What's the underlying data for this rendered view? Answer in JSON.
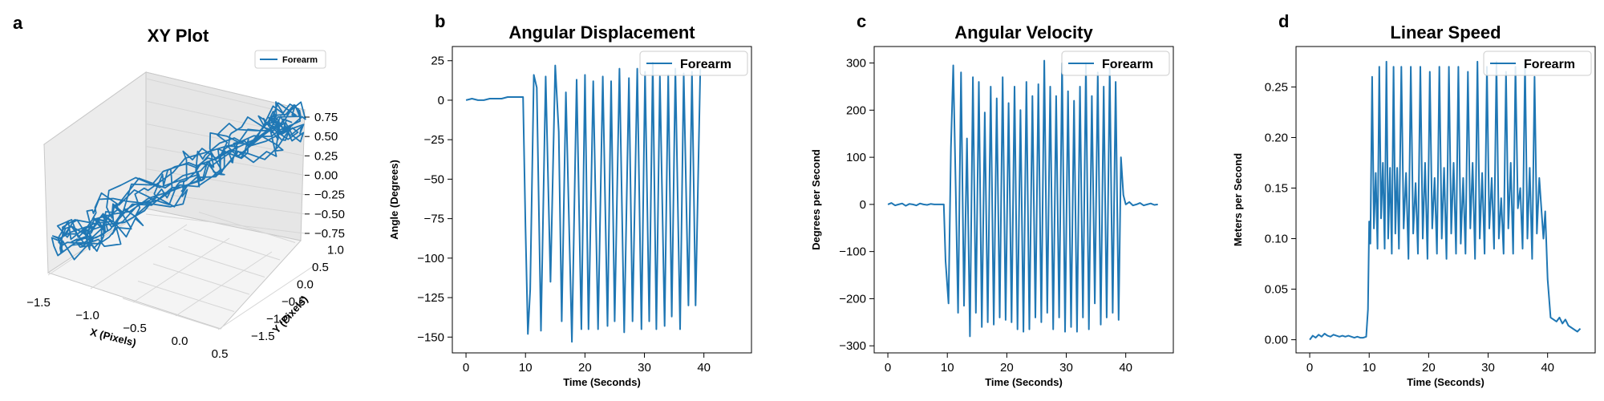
{
  "chart_data": [
    {
      "panel": "a",
      "type": "line",
      "projection": "3d",
      "title": "XY Plot",
      "xlabel": "X (Pixels)",
      "ylabel": "Y (Pixels)",
      "zlabel": "",
      "legend": "Forearm",
      "legend_position": "top-right",
      "x_ticks": [
        "−1.5",
        "−1.0",
        "−0.5",
        "0.0",
        "0.5"
      ],
      "y_ticks": [
        "−1.5",
        "−1.0",
        "−0.5",
        "0.0",
        "0.5",
        "1.0"
      ],
      "z_ticks": [
        "0.75",
        "0.50",
        "0.25",
        "0.00",
        "−0.25",
        "−0.50",
        "−0.75"
      ],
      "xlim": [
        -1.6,
        0.9
      ],
      "ylim": [
        -1.6,
        1.2
      ],
      "zlim": [
        -0.85,
        0.8
      ],
      "color": "#1f77b4",
      "grid": true
    },
    {
      "panel": "b",
      "type": "line",
      "title": "Angular Displacement",
      "xlabel": "Time (Seconds)",
      "ylabel": "Angle (Degrees)",
      "legend": "Forearm",
      "legend_position": "top-right",
      "xlim": [
        -2.3,
        48
      ],
      "ylim": [
        -160,
        34
      ],
      "x_ticks": [
        "0",
        "10",
        "20",
        "30",
        "40"
      ],
      "y_ticks": [
        "25",
        "0",
        "−25",
        "−50",
        "−75",
        "−100",
        "−125",
        "−150"
      ],
      "series": [
        {
          "color": "#1f77b4",
          "x": [
            0,
            1,
            2,
            3,
            4,
            5,
            6,
            7,
            8,
            9,
            9.6,
            10.0,
            10.4,
            10.8,
            11.4,
            11.9,
            12.6,
            13.4,
            14.2,
            15.0,
            15.6,
            16.1,
            16.8,
            17.8,
            18.6,
            19.4,
            20.0,
            20.6,
            21.4,
            22.2,
            23.0,
            23.8,
            24.4,
            25.0,
            25.8,
            26.6,
            27.4,
            28.0,
            28.8,
            29.5,
            30.1,
            30.8,
            31.4,
            32.0,
            32.6,
            33.4,
            34.0,
            34.6,
            35.2,
            36.0,
            36.6,
            37.4,
            38.0,
            38.6,
            39.4
          ],
          "y": [
            0,
            1,
            0,
            0,
            1,
            1,
            1,
            2,
            2,
            2,
            2,
            -80,
            -148,
            -120,
            16,
            8,
            -146,
            15,
            -115,
            22,
            -20,
            -140,
            5,
            -153,
            13,
            -145,
            16,
            -145,
            12,
            -145,
            15,
            -143,
            12,
            -140,
            20,
            -147,
            14,
            -140,
            20,
            -145,
            18,
            -140,
            24,
            -145,
            15,
            -143,
            16,
            -137,
            20,
            -145,
            17,
            -130,
            18,
            -130,
            20
          ]
        }
      ]
    },
    {
      "panel": "c",
      "type": "line",
      "title": "Angular Velocity",
      "xlabel": "Time (Seconds)",
      "ylabel": "Degrees per Second",
      "legend": "Forearm",
      "legend_position": "top-right",
      "xlim": [
        -2.3,
        48
      ],
      "ylim": [
        -315,
        335
      ],
      "x_ticks": [
        "0",
        "10",
        "20",
        "30",
        "40"
      ],
      "y_ticks": [
        "300",
        "200",
        "100",
        "0",
        "−100",
        "−200",
        "−300"
      ],
      "series": [
        {
          "color": "#1f77b4",
          "x": [
            0,
            0.6,
            1.2,
            1.8,
            2.4,
            3,
            3.6,
            4.2,
            4.8,
            5.4,
            6,
            6.6,
            7.2,
            7.8,
            8.4,
            9.0,
            9.4,
            9.7,
            10.2,
            10.6,
            11.0,
            11.4,
            11.8,
            12.3,
            12.8,
            13.3,
            13.8,
            14.3,
            14.8,
            15.3,
            15.8,
            16.3,
            16.8,
            17.3,
            17.8,
            18.3,
            18.8,
            19.3,
            19.8,
            20.3,
            20.8,
            21.3,
            21.8,
            22.3,
            22.8,
            23.3,
            23.8,
            24.3,
            24.8,
            25.3,
            25.8,
            26.3,
            26.8,
            27.3,
            27.8,
            28.3,
            28.8,
            29.3,
            29.8,
            30.3,
            30.8,
            31.3,
            31.8,
            32.3,
            32.8,
            33.3,
            33.8,
            34.3,
            34.8,
            35.3,
            35.8,
            36.3,
            36.8,
            37.3,
            37.8,
            38.3,
            38.8,
            39.2,
            39.6,
            40.0,
            40.6,
            41.2,
            41.8,
            42.4,
            43,
            43.6,
            44.2,
            44.8,
            45.4
          ],
          "y": [
            0,
            3,
            -2,
            0,
            2,
            -3,
            1,
            0,
            -2,
            2,
            0,
            -1,
            1,
            0,
            0,
            0,
            0,
            -120,
            -210,
            120,
            295,
            40,
            -230,
            280,
            -215,
            140,
            -280,
            270,
            -230,
            260,
            -260,
            195,
            -250,
            250,
            -255,
            225,
            -240,
            270,
            -245,
            215,
            -250,
            250,
            -265,
            200,
            -270,
            260,
            -265,
            230,
            -240,
            255,
            -250,
            305,
            -230,
            250,
            -265,
            230,
            -240,
            300,
            -270,
            240,
            -260,
            220,
            -270,
            250,
            -240,
            300,
            -265,
            230,
            -210,
            280,
            -255,
            250,
            -240,
            290,
            -230,
            260,
            -245,
            100,
            20,
            0,
            5,
            -2,
            0,
            3,
            -2,
            0,
            2,
            -1,
            0
          ]
        }
      ]
    },
    {
      "panel": "d",
      "type": "line",
      "title": "Linear Speed",
      "xlabel": "Time (Seconds)",
      "ylabel": "Meters per Second",
      "legend": "Forearm",
      "legend_position": "top-right",
      "xlim": [
        -2.3,
        48
      ],
      "ylim": [
        -0.013,
        0.29
      ],
      "x_ticks": [
        "0",
        "10",
        "20",
        "30",
        "40"
      ],
      "y_ticks": [
        "0.25",
        "0.20",
        "0.15",
        "0.10",
        "0.05",
        "0.00"
      ],
      "series": [
        {
          "color": "#1f77b4",
          "x": [
            0,
            0.5,
            1,
            1.5,
            2,
            2.5,
            3,
            3.5,
            4,
            4.5,
            5,
            5.5,
            6,
            6.5,
            7,
            7.5,
            8,
            8.5,
            9,
            9.5,
            9.8,
            10.0,
            10.2,
            10.5,
            10.8,
            11.1,
            11.4,
            11.7,
            12.0,
            12.3,
            12.6,
            12.9,
            13.2,
            13.5,
            13.8,
            14.1,
            14.4,
            14.7,
            15.0,
            15.4,
            15.8,
            16.2,
            16.6,
            17.0,
            17.4,
            17.8,
            18.2,
            18.6,
            19.0,
            19.4,
            19.8,
            20.2,
            20.6,
            21.0,
            21.4,
            21.8,
            22.2,
            22.6,
            23.0,
            23.4,
            23.8,
            24.2,
            24.6,
            25.0,
            25.4,
            25.8,
            26.2,
            26.6,
            27.0,
            27.4,
            27.8,
            28.2,
            28.6,
            29.0,
            29.4,
            29.8,
            30.2,
            30.6,
            31.0,
            31.4,
            31.8,
            32.2,
            32.6,
            33.0,
            33.4,
            33.8,
            34.2,
            34.6,
            35.0,
            35.4,
            35.8,
            36.2,
            36.6,
            37.0,
            37.4,
            37.8,
            38.2,
            38.6,
            39.0,
            39.3,
            39.6,
            40.0,
            40.5,
            41,
            41.5,
            42,
            42.5,
            43,
            43.5,
            44,
            44.5,
            45,
            45.5
          ],
          "y": [
            0.0,
            0.004,
            0.002,
            0.005,
            0.003,
            0.006,
            0.004,
            0.003,
            0.005,
            0.004,
            0.003,
            0.004,
            0.003,
            0.004,
            0.003,
            0.002,
            0.003,
            0.002,
            0.002,
            0.003,
            0.03,
            0.117,
            0.095,
            0.26,
            0.11,
            0.165,
            0.09,
            0.27,
            0.12,
            0.175,
            0.09,
            0.275,
            0.1,
            0.17,
            0.085,
            0.27,
            0.105,
            0.17,
            0.09,
            0.27,
            0.11,
            0.165,
            0.08,
            0.27,
            0.105,
            0.155,
            0.085,
            0.27,
            0.1,
            0.175,
            0.08,
            0.265,
            0.11,
            0.16,
            0.085,
            0.27,
            0.1,
            0.17,
            0.08,
            0.27,
            0.105,
            0.175,
            0.085,
            0.27,
            0.095,
            0.16,
            0.085,
            0.265,
            0.11,
            0.175,
            0.08,
            0.275,
            0.1,
            0.165,
            0.085,
            0.27,
            0.11,
            0.16,
            0.09,
            0.275,
            0.1,
            0.14,
            0.085,
            0.265,
            0.11,
            0.175,
            0.085,
            0.27,
            0.13,
            0.15,
            0.09,
            0.275,
            0.1,
            0.17,
            0.08,
            0.26,
            0.105,
            0.16,
            0.125,
            0.1,
            0.127,
            0.06,
            0.022,
            0.02,
            0.018,
            0.022,
            0.016,
            0.02,
            0.014,
            0.012,
            0.01,
            0.008,
            0.011
          ]
        }
      ]
    }
  ],
  "panels": [
    "a",
    "b",
    "c",
    "d"
  ]
}
